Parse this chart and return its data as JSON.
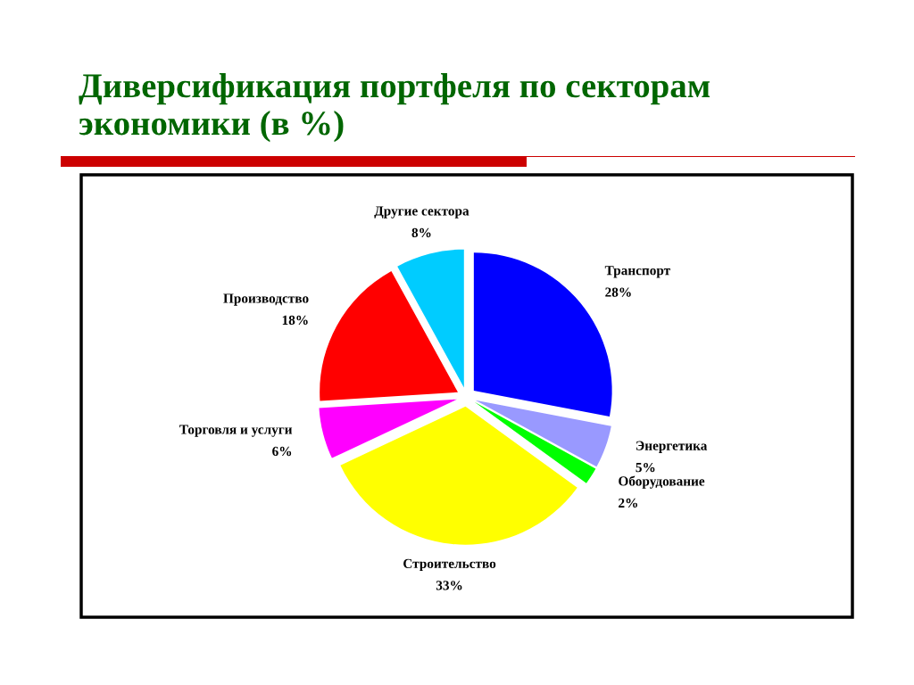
{
  "chart_data": {
    "type": "pie",
    "title": "Диверсификация портфеля по секторам\nэкономики (в %)",
    "categories": [
      "Транспорт",
      "Энергетика",
      "Оборудование",
      "Строительство",
      "Торговля и услуги",
      "Производство",
      "Другие сектора"
    ],
    "values": [
      28,
      5,
      2,
      33,
      6,
      18,
      8
    ],
    "colors": [
      "#0000ff",
      "#9999ff",
      "#00ff00",
      "#ffff00",
      "#ff00ff",
      "#ff0000",
      "#00ccff"
    ],
    "value_labels": [
      "28%",
      "5%",
      "2%",
      "33%",
      "6%",
      "18%",
      "8%"
    ]
  }
}
